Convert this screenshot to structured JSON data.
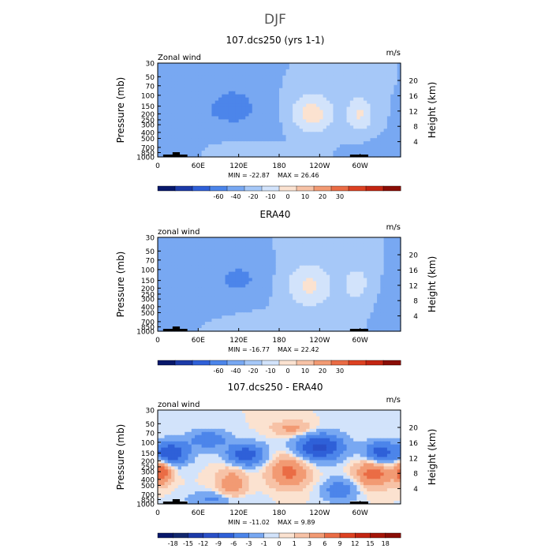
{
  "figure": {
    "title": "DJF",
    "colors": {
      "positive": "#d7301f",
      "negative": "#2c5fd6",
      "background_bar": "#000000"
    }
  },
  "chart_data": [
    {
      "type": "heatmap",
      "title": "107.dcs250 (yrs 1-1)",
      "top_left_label": "Zonal wind",
      "top_right_label": "m/s",
      "ylabel": "Pressure (mb)",
      "ylabel_right": "Height (km)",
      "y_ticks_pressure": [
        "30",
        "50",
        "70",
        "100",
        "150",
        "200",
        "250",
        "300",
        "400",
        "500",
        "700",
        "850",
        "1000"
      ],
      "y_ticks_height": [
        "20",
        "16",
        "12",
        "8",
        "4"
      ],
      "x_ticks": [
        "0",
        "60E",
        "120E",
        "180",
        "120W",
        "60W"
      ],
      "stats": {
        "min": "MIN = -22.87",
        "max": "MAX = 26.46"
      },
      "colorbar": {
        "levels": [
          -60,
          -40,
          -20,
          -10,
          0,
          10,
          20,
          30
        ],
        "labels": [
          "-60",
          "-40",
          "-20",
          "-10",
          "0",
          "10",
          "20",
          "30"
        ],
        "colors": [
          "#08186b",
          "#1c3aa8",
          "#2f60d8",
          "#4c85ea",
          "#78a8f2",
          "#a6c8f8",
          "#d2e3fb",
          "#fbe2d0",
          "#f7c2a6",
          "#f29a73",
          "#ea6c45",
          "#dd4122",
          "#c32512",
          "#8a0d06"
        ]
      },
      "features": [
        {
          "lon": 50,
          "p": 220,
          "value": -8,
          "sx": 25,
          "sp": 0.35
        },
        {
          "lon": 110,
          "p": 150,
          "value": -18,
          "sx": 22,
          "sp": 0.45
        },
        {
          "lon": 165,
          "p": 250,
          "value": -4,
          "sx": 40,
          "sp": 0.7
        },
        {
          "lon": 228,
          "p": 200,
          "value": 26,
          "sx": 24,
          "sp": 0.55
        },
        {
          "lon": 300,
          "p": 200,
          "value": 21,
          "sx": 14,
          "sp": 0.5
        },
        {
          "lon": 150,
          "p": 850,
          "value": 6,
          "sx": 35,
          "sp": 0.25
        },
        {
          "lon": 340,
          "p": 700,
          "value": -3,
          "sx": 40,
          "sp": 0.3
        }
      ]
    },
    {
      "type": "heatmap",
      "title": "ERA40",
      "top_left_label": "zonal wind",
      "top_right_label": "m/s",
      "ylabel": "Pressure (mb)",
      "ylabel_right": "Height (km)",
      "y_ticks_pressure": [
        "30",
        "50",
        "70",
        "100",
        "150",
        "200",
        "250",
        "300",
        "400",
        "500",
        "700",
        "850",
        "1000"
      ],
      "y_ticks_height": [
        "20",
        "16",
        "12",
        "8",
        "4"
      ],
      "x_ticks": [
        "0",
        "60E",
        "120E",
        "180",
        "120W",
        "60W"
      ],
      "stats": {
        "min": "MIN = -16.77",
        "max": "MAX = 22.42"
      },
      "colorbar": {
        "levels": [
          -60,
          -40,
          -20,
          -10,
          0,
          10,
          20,
          30
        ],
        "labels": [
          "-60",
          "-40",
          "-20",
          "-10",
          "0",
          "10",
          "20",
          "30"
        ],
        "colors": [
          "#08186b",
          "#1c3aa8",
          "#2f60d8",
          "#4c85ea",
          "#78a8f2",
          "#a6c8f8",
          "#d2e3fb",
          "#fbe2d0",
          "#f7c2a6",
          "#f29a73",
          "#ea6c45",
          "#dd4122",
          "#c32512",
          "#8a0d06"
        ]
      },
      "features": [
        {
          "lon": 120,
          "p": 140,
          "value": -12,
          "sx": 28,
          "sp": 0.5
        },
        {
          "lon": 45,
          "p": 300,
          "value": -4,
          "sx": 45,
          "sp": 0.6
        },
        {
          "lon": 225,
          "p": 180,
          "value": 22,
          "sx": 25,
          "sp": 0.6
        },
        {
          "lon": 295,
          "p": 170,
          "value": 16,
          "sx": 14,
          "sp": 0.5
        },
        {
          "lon": 150,
          "p": 800,
          "value": 4,
          "sx": 50,
          "sp": 0.3
        }
      ]
    },
    {
      "type": "heatmap",
      "title": "107.dcs250 - ERA40",
      "top_left_label": "zonal wind",
      "top_right_label": "m/s",
      "ylabel": "Pressure (mb)",
      "ylabel_right": "Height (km)",
      "y_ticks_pressure": [
        "30",
        "50",
        "70",
        "100",
        "150",
        "200",
        "250",
        "300",
        "400",
        "500",
        "700",
        "850",
        "1000"
      ],
      "y_ticks_height": [
        "20",
        "16",
        "12",
        "8",
        "4"
      ],
      "x_ticks": [
        "0",
        "60E",
        "120E",
        "180",
        "120W",
        "60W"
      ],
      "stats": {
        "min": "MIN = -11.02",
        "max": "MAX = 9.89"
      },
      "colorbar": {
        "levels": [
          -18,
          -15,
          -12,
          -9,
          -6,
          -3,
          -1,
          0,
          1,
          3,
          6,
          9,
          12,
          15,
          18
        ],
        "labels": [
          "-18",
          "-15",
          "-12",
          "-9",
          "-6",
          "-3",
          "-1",
          "0",
          "1",
          "3",
          "6",
          "9",
          "12",
          "15",
          "18"
        ],
        "colors": [
          "#08186b",
          "#12286f",
          "#1c3aa8",
          "#2a50c8",
          "#2f60d8",
          "#4c85ea",
          "#78a8f2",
          "#d2e3fb",
          "#fbe2d0",
          "#f7c2a6",
          "#f29a73",
          "#ea6c45",
          "#dd4122",
          "#c32512",
          "#a51508",
          "#8a0d06"
        ]
      },
      "features": [
        {
          "lon": 20,
          "p": 150,
          "value": -9,
          "sx": 18,
          "sp": 0.3
        },
        {
          "lon": 130,
          "p": 160,
          "value": -8,
          "sx": 20,
          "sp": 0.3
        },
        {
          "lon": 240,
          "p": 120,
          "value": -10,
          "sx": 25,
          "sp": 0.35
        },
        {
          "lon": 330,
          "p": 150,
          "value": -8,
          "sx": 16,
          "sp": 0.3
        },
        {
          "lon": 75,
          "p": 90,
          "value": -5,
          "sx": 20,
          "sp": 0.25
        },
        {
          "lon": 5,
          "p": 300,
          "value": 9,
          "sx": 10,
          "sp": 0.3
        },
        {
          "lon": 195,
          "p": 300,
          "value": 7,
          "sx": 20,
          "sp": 0.4
        },
        {
          "lon": 320,
          "p": 320,
          "value": 8,
          "sx": 18,
          "sp": 0.35
        },
        {
          "lon": 110,
          "p": 500,
          "value": 5,
          "sx": 15,
          "sp": 0.5
        },
        {
          "lon": 270,
          "p": 600,
          "value": -5,
          "sx": 18,
          "sp": 0.3
        },
        {
          "lon": 90,
          "p": 850,
          "value": -4,
          "sx": 30,
          "sp": 0.2
        },
        {
          "lon": 200,
          "p": 60,
          "value": 4,
          "sx": 20,
          "sp": 0.2
        }
      ]
    }
  ]
}
